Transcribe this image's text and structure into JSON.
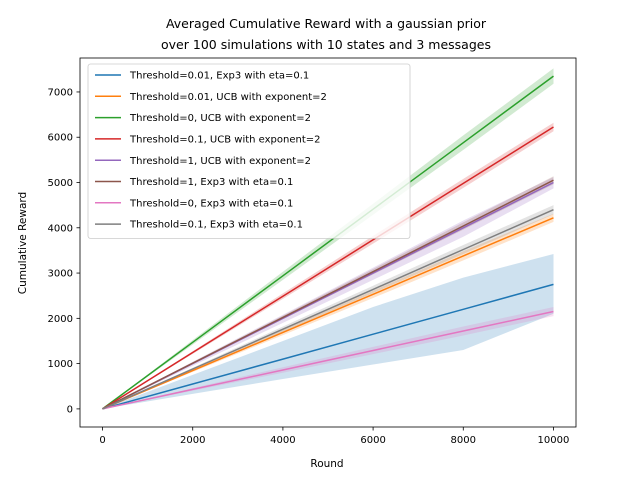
{
  "chart_data": {
    "type": "line",
    "title_lines": [
      "Averaged Cumulative Reward with a gaussian prior",
      "over 100 simulations with 10 states and 3 messages"
    ],
    "xlabel": "Round",
    "ylabel": "Cumulative Reward",
    "xlim": [
      -500,
      10500
    ],
    "ylim": [
      -400,
      7750
    ],
    "xticks": [
      0,
      2000,
      4000,
      6000,
      8000,
      10000
    ],
    "yticks": [
      0,
      1000,
      2000,
      3000,
      4000,
      5000,
      6000,
      7000
    ],
    "grid": false,
    "legend_position": "top-left",
    "x": [
      0,
      2000,
      4000,
      6000,
      8000,
      10000
    ],
    "series": [
      {
        "name": "Threshold=0.01, Exp3 with eta=0.1",
        "color": "#1f77b4",
        "values": [
          0,
          550,
          1100,
          1650,
          2200,
          2750
        ],
        "band_lower": [
          0,
          330,
          660,
          980,
          1300,
          2100
        ],
        "band_upper": [
          0,
          750,
          1500,
          2250,
          2900,
          3420
        ]
      },
      {
        "name": "Threshold=0.01, UCB with exponent=2",
        "color": "#ff7f0e",
        "values": [
          0,
          845,
          1690,
          2530,
          3380,
          4220
        ],
        "band_lower": [
          0,
          815,
          1630,
          2450,
          3280,
          4130
        ],
        "band_upper": [
          0,
          875,
          1750,
          2610,
          3480,
          4310
        ]
      },
      {
        "name": "Threshold=0, UCB with exponent=2",
        "color": "#2ca02c",
        "values": [
          0,
          1470,
          2940,
          4410,
          5880,
          7350
        ],
        "band_lower": [
          0,
          1420,
          2850,
          4290,
          5720,
          7180
        ],
        "band_upper": [
          0,
          1520,
          3030,
          4530,
          6040,
          7520
        ]
      },
      {
        "name": "Threshold=0.1, UCB with exponent=2",
        "color": "#d62728",
        "values": [
          0,
          1245,
          2490,
          3735,
          4980,
          6225
        ],
        "band_lower": [
          0,
          1215,
          2430,
          3650,
          4880,
          6130
        ],
        "band_upper": [
          0,
          1275,
          2550,
          3820,
          5080,
          6320
        ]
      },
      {
        "name": "Threshold=1, UCB with exponent=2",
        "color": "#9467bd",
        "values": [
          0,
          1000,
          2000,
          3000,
          4000,
          5000
        ],
        "band_lower": [
          0,
          950,
          1900,
          2850,
          3800,
          4870
        ],
        "band_upper": [
          0,
          1040,
          2080,
          3120,
          4160,
          5120
        ]
      },
      {
        "name": "Threshold=1, Exp3 with eta=0.1",
        "color": "#8c564b",
        "values": [
          0,
          1010,
          2020,
          3030,
          4040,
          5050
        ],
        "band_lower": [
          0,
          990,
          1980,
          2970,
          3960,
          4960
        ],
        "band_upper": [
          0,
          1030,
          2060,
          3090,
          4120,
          5140
        ]
      },
      {
        "name": "Threshold=0, Exp3 with eta=0.1",
        "color": "#e377c2",
        "values": [
          0,
          430,
          860,
          1290,
          1720,
          2150
        ],
        "band_lower": [
          0,
          400,
          800,
          1210,
          1620,
          2050
        ],
        "band_upper": [
          0,
          460,
          920,
          1370,
          1820,
          2250
        ]
      },
      {
        "name": "Threshold=0.1, Exp3 with eta=0.1",
        "color": "#7f7f7f",
        "values": [
          0,
          880,
          1760,
          2640,
          3520,
          4400
        ],
        "band_lower": [
          0,
          850,
          1700,
          2560,
          3420,
          4300
        ],
        "band_upper": [
          0,
          910,
          1820,
          2720,
          3620,
          4500
        ]
      }
    ]
  }
}
